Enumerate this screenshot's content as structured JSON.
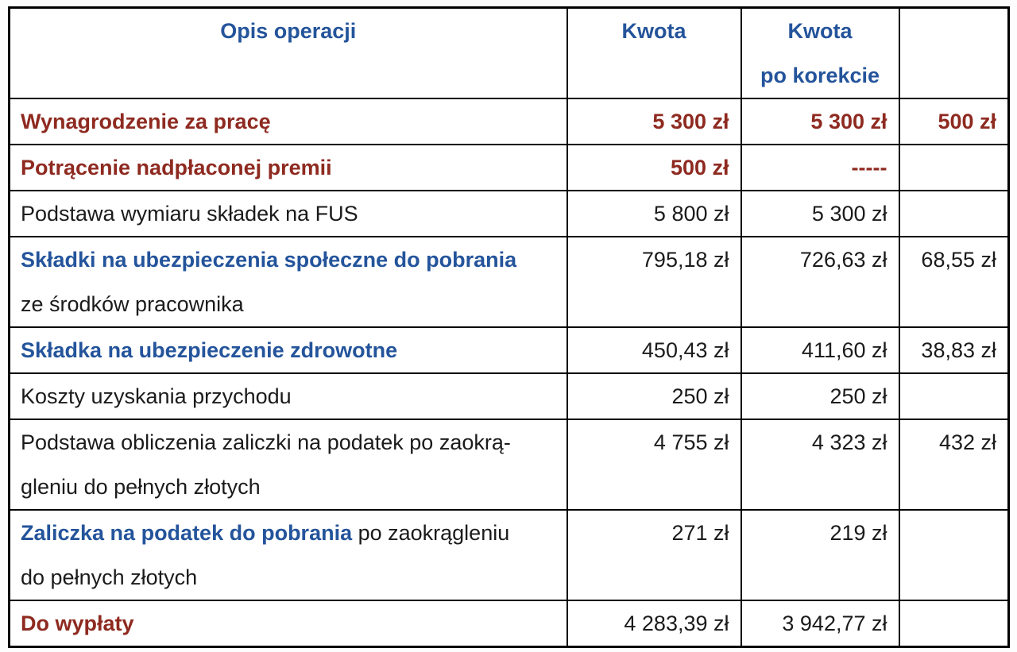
{
  "colors": {
    "header_blue": "#24549B",
    "emphasis_red": "#8E2A20",
    "body_black": "#1b1b1b",
    "border": "#000000"
  },
  "table": {
    "header": {
      "col1": "Opis operacji",
      "col2": "Kwota",
      "col3_line1": "Kwota",
      "col3_line2": "po korekcie",
      "col4": ""
    },
    "rows": [
      {
        "lines": 1,
        "label": [
          {
            "t": "Wynagrodzenie za pracę",
            "s": "red"
          }
        ],
        "vs": "red",
        "values": [
          "5 300 zł",
          "5 300 zł",
          "500 zł"
        ]
      },
      {
        "lines": 1,
        "label": [
          {
            "t": "Potrącenie nadpłaconej premii",
            "s": "red"
          }
        ],
        "vs": "red",
        "values": [
          "500 zł",
          "-----",
          ""
        ]
      },
      {
        "lines": 1,
        "label": [
          {
            "t": "Podstawa wymiaru składek na FUS",
            "s": "plain"
          }
        ],
        "vs": "plain",
        "values": [
          "5 800 zł",
          "5 300 zł",
          ""
        ]
      },
      {
        "lines": 2,
        "label": [
          {
            "t": "Składki na ubezpieczenia społeczne do pobrania",
            "s": "blue"
          },
          {
            "t": "ze środków pracownika",
            "s": "plain",
            "br": true
          }
        ],
        "vs": "plain",
        "values": [
          "795,18 zł",
          "726,63 zł",
          "68,55 zł"
        ]
      },
      {
        "lines": 1,
        "label": [
          {
            "t": "Składka na ubezpieczenie zdrowotne",
            "s": "blue"
          }
        ],
        "vs": "plain",
        "values": [
          "450,43 zł",
          "411,60 zł",
          "38,83 zł"
        ]
      },
      {
        "lines": 1,
        "label": [
          {
            "t": "Koszty uzyskania przychodu",
            "s": "plain"
          }
        ],
        "vs": "plain",
        "values": [
          "250 zł",
          "250 zł",
          ""
        ]
      },
      {
        "lines": 2,
        "label": [
          {
            "t": "Podstawa obliczenia zaliczki na podatek po zaokrą-",
            "s": "plain"
          },
          {
            "t": "gleniu do pełnych złotych",
            "s": "plain",
            "br": true
          }
        ],
        "vs": "plain",
        "values": [
          "4 755 zł",
          "4 323 zł",
          "432 zł"
        ]
      },
      {
        "lines": 2,
        "label": [
          {
            "t": "Zaliczka na podatek do pobrania",
            "s": "blue"
          },
          {
            "t": " po zaokrągleniu",
            "s": "plain"
          },
          {
            "t": "do pełnych złotych",
            "s": "plain",
            "br": true
          }
        ],
        "vs": "plain",
        "values": [
          "271 zł",
          "219 zł",
          ""
        ]
      },
      {
        "lines": 1,
        "label": [
          {
            "t": "Do wypłaty",
            "s": "red"
          }
        ],
        "vs": "plain",
        "values": [
          "4 283,39 zł",
          "3 942,77 zł",
          ""
        ]
      }
    ]
  }
}
